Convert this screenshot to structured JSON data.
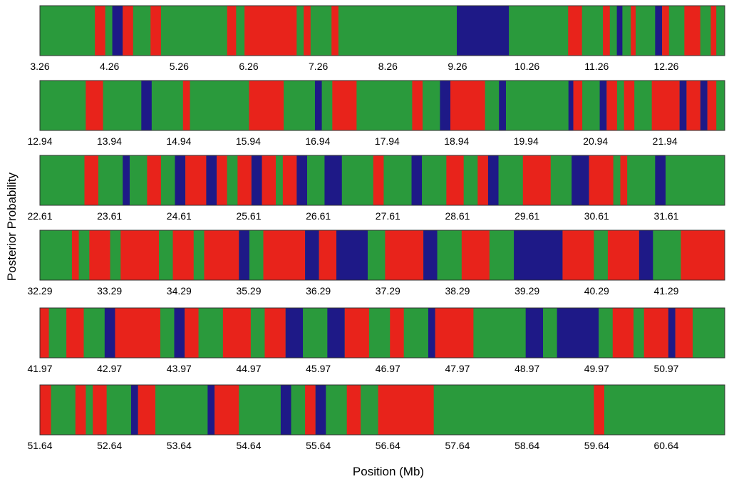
{
  "chart_data": {
    "type": "area",
    "ylabel": "Posterior Probability",
    "xlabel": "Position (Mb)",
    "colors": {
      "green": "#2a9a3c",
      "red": "#e8231b",
      "blue": "#1e1987"
    },
    "panels": [
      {
        "xlim": [
          3.26,
          13.1
        ],
        "ticks": [
          "3.26",
          "4.26",
          "5.26",
          "6.26",
          "7.26",
          "8.26",
          "9.26",
          "10.26",
          "11.26",
          "12.26"
        ],
        "blocks": [
          [
            3.26,
            "green"
          ],
          [
            4.05,
            "red"
          ],
          [
            4.2,
            "green"
          ],
          [
            4.3,
            "blue"
          ],
          [
            4.45,
            "red"
          ],
          [
            4.6,
            "green"
          ],
          [
            4.85,
            "red"
          ],
          [
            5.0,
            "green"
          ],
          [
            5.95,
            "red"
          ],
          [
            6.08,
            "green"
          ],
          [
            6.2,
            "red"
          ],
          [
            6.95,
            "green"
          ],
          [
            7.05,
            "red"
          ],
          [
            7.15,
            "green"
          ],
          [
            7.45,
            "red"
          ],
          [
            7.55,
            "green"
          ],
          [
            9.25,
            "blue"
          ],
          [
            10.0,
            "green"
          ],
          [
            10.85,
            "red"
          ],
          [
            11.05,
            "green"
          ],
          [
            11.35,
            "red"
          ],
          [
            11.45,
            "green"
          ],
          [
            11.55,
            "blue"
          ],
          [
            11.63,
            "green"
          ],
          [
            11.75,
            "red"
          ],
          [
            11.82,
            "green"
          ],
          [
            12.1,
            "blue"
          ],
          [
            12.2,
            "red"
          ],
          [
            12.3,
            "green"
          ],
          [
            12.52,
            "red"
          ],
          [
            12.75,
            "green"
          ],
          [
            12.9,
            "red"
          ],
          [
            12.98,
            "green"
          ]
        ]
      },
      {
        "xlim": [
          12.94,
          22.8
        ],
        "ticks": [
          "12.94",
          "13.94",
          "14.94",
          "15.94",
          "16.94",
          "17.94",
          "18.94",
          "19.94",
          "20.94",
          "21.94"
        ],
        "blocks": [
          [
            12.94,
            "green"
          ],
          [
            13.6,
            "red"
          ],
          [
            13.85,
            "green"
          ],
          [
            14.4,
            "blue"
          ],
          [
            14.55,
            "green"
          ],
          [
            15.0,
            "red"
          ],
          [
            15.1,
            "green"
          ],
          [
            15.95,
            "red"
          ],
          [
            16.45,
            "green"
          ],
          [
            16.9,
            "blue"
          ],
          [
            17.0,
            "green"
          ],
          [
            17.15,
            "red"
          ],
          [
            17.5,
            "green"
          ],
          [
            18.3,
            "red"
          ],
          [
            18.45,
            "green"
          ],
          [
            18.7,
            "blue"
          ],
          [
            18.85,
            "red"
          ],
          [
            19.35,
            "green"
          ],
          [
            19.55,
            "blue"
          ],
          [
            19.65,
            "green"
          ],
          [
            20.55,
            "blue"
          ],
          [
            20.62,
            "red"
          ],
          [
            20.75,
            "green"
          ],
          [
            21.0,
            "blue"
          ],
          [
            21.1,
            "red"
          ],
          [
            21.25,
            "green"
          ],
          [
            21.35,
            "red"
          ],
          [
            21.5,
            "green"
          ],
          [
            21.75,
            "red"
          ],
          [
            22.15,
            "blue"
          ],
          [
            22.25,
            "red"
          ],
          [
            22.45,
            "blue"
          ],
          [
            22.55,
            "red"
          ],
          [
            22.68,
            "green"
          ]
        ]
      },
      {
        "xlim": [
          22.61,
          32.45
        ],
        "ticks": [
          "22.61",
          "23.61",
          "24.61",
          "25.61",
          "26.61",
          "27.61",
          "28.61",
          "29.61",
          "30.61",
          "31.61"
        ],
        "blocks": [
          [
            22.61,
            "green"
          ],
          [
            23.25,
            "red"
          ],
          [
            23.45,
            "green"
          ],
          [
            23.8,
            "blue"
          ],
          [
            23.9,
            "green"
          ],
          [
            24.15,
            "red"
          ],
          [
            24.35,
            "green"
          ],
          [
            24.55,
            "blue"
          ],
          [
            24.7,
            "red"
          ],
          [
            25.0,
            "blue"
          ],
          [
            25.15,
            "red"
          ],
          [
            25.3,
            "green"
          ],
          [
            25.45,
            "red"
          ],
          [
            25.65,
            "blue"
          ],
          [
            25.8,
            "red"
          ],
          [
            26.0,
            "green"
          ],
          [
            26.1,
            "red"
          ],
          [
            26.3,
            "blue"
          ],
          [
            26.45,
            "green"
          ],
          [
            26.7,
            "blue"
          ],
          [
            26.95,
            "green"
          ],
          [
            27.4,
            "red"
          ],
          [
            27.55,
            "green"
          ],
          [
            27.95,
            "blue"
          ],
          [
            28.1,
            "green"
          ],
          [
            28.45,
            "red"
          ],
          [
            28.7,
            "green"
          ],
          [
            28.9,
            "red"
          ],
          [
            29.05,
            "blue"
          ],
          [
            29.2,
            "green"
          ],
          [
            29.55,
            "red"
          ],
          [
            29.95,
            "green"
          ],
          [
            30.25,
            "blue"
          ],
          [
            30.5,
            "red"
          ],
          [
            30.85,
            "green"
          ],
          [
            30.95,
            "red"
          ],
          [
            31.05,
            "green"
          ],
          [
            31.45,
            "blue"
          ],
          [
            31.6,
            "green"
          ]
        ]
      },
      {
        "xlim": [
          32.29,
          42.13
        ],
        "ticks": [
          "32.29",
          "33.29",
          "34.29",
          "35.29",
          "36.29",
          "37.29",
          "38.29",
          "39.29",
          "40.29",
          "41.29"
        ],
        "blocks": [
          [
            32.29,
            "green"
          ],
          [
            32.75,
            "red"
          ],
          [
            32.85,
            "green"
          ],
          [
            33.0,
            "red"
          ],
          [
            33.3,
            "green"
          ],
          [
            33.45,
            "red"
          ],
          [
            34.0,
            "green"
          ],
          [
            34.2,
            "red"
          ],
          [
            34.5,
            "green"
          ],
          [
            34.65,
            "red"
          ],
          [
            35.15,
            "blue"
          ],
          [
            35.3,
            "green"
          ],
          [
            35.5,
            "red"
          ],
          [
            36.1,
            "blue"
          ],
          [
            36.3,
            "red"
          ],
          [
            36.55,
            "blue"
          ],
          [
            37.0,
            "green"
          ],
          [
            37.25,
            "red"
          ],
          [
            37.8,
            "blue"
          ],
          [
            38.0,
            "green"
          ],
          [
            38.35,
            "red"
          ],
          [
            38.75,
            "green"
          ],
          [
            39.1,
            "blue"
          ],
          [
            39.8,
            "red"
          ],
          [
            40.25,
            "green"
          ],
          [
            40.45,
            "red"
          ],
          [
            40.9,
            "blue"
          ],
          [
            41.1,
            "green"
          ],
          [
            41.5,
            "red"
          ]
        ]
      },
      {
        "xlim": [
          41.97,
          51.81
        ],
        "ticks": [
          "41.97",
          "42.97",
          "43.97",
          "44.97",
          "45.97",
          "46.97",
          "47.97",
          "48.97",
          "49.97",
          "50.97"
        ],
        "blocks": [
          [
            41.97,
            "red"
          ],
          [
            42.1,
            "green"
          ],
          [
            42.35,
            "red"
          ],
          [
            42.6,
            "green"
          ],
          [
            42.9,
            "blue"
          ],
          [
            43.05,
            "red"
          ],
          [
            43.7,
            "green"
          ],
          [
            43.9,
            "blue"
          ],
          [
            44.05,
            "red"
          ],
          [
            44.25,
            "green"
          ],
          [
            44.6,
            "red"
          ],
          [
            45.0,
            "green"
          ],
          [
            45.2,
            "red"
          ],
          [
            45.5,
            "blue"
          ],
          [
            45.75,
            "green"
          ],
          [
            46.1,
            "blue"
          ],
          [
            46.35,
            "red"
          ],
          [
            46.7,
            "green"
          ],
          [
            47.0,
            "red"
          ],
          [
            47.2,
            "green"
          ],
          [
            47.55,
            "blue"
          ],
          [
            47.65,
            "red"
          ],
          [
            48.2,
            "green"
          ],
          [
            48.95,
            "blue"
          ],
          [
            49.2,
            "green"
          ],
          [
            49.4,
            "blue"
          ],
          [
            50.0,
            "green"
          ],
          [
            50.2,
            "red"
          ],
          [
            50.5,
            "green"
          ],
          [
            50.65,
            "red"
          ],
          [
            51.0,
            "blue"
          ],
          [
            51.1,
            "red"
          ],
          [
            51.35,
            "green"
          ]
        ]
      },
      {
        "xlim": [
          51.64,
          61.48
        ],
        "ticks": [
          "51.64",
          "52.64",
          "53.64",
          "54.64",
          "55.64",
          "56.64",
          "57.64",
          "58.64",
          "59.64",
          "60.64"
        ],
        "blocks": [
          [
            51.64,
            "red"
          ],
          [
            51.8,
            "green"
          ],
          [
            52.15,
            "red"
          ],
          [
            52.3,
            "green"
          ],
          [
            52.4,
            "red"
          ],
          [
            52.6,
            "green"
          ],
          [
            52.95,
            "blue"
          ],
          [
            53.05,
            "red"
          ],
          [
            53.3,
            "green"
          ],
          [
            54.05,
            "blue"
          ],
          [
            54.15,
            "red"
          ],
          [
            54.5,
            "green"
          ],
          [
            55.1,
            "blue"
          ],
          [
            55.25,
            "green"
          ],
          [
            55.45,
            "red"
          ],
          [
            55.6,
            "blue"
          ],
          [
            55.75,
            "green"
          ],
          [
            56.05,
            "red"
          ],
          [
            56.25,
            "green"
          ],
          [
            56.5,
            "red"
          ],
          [
            57.3,
            "green"
          ],
          [
            59.6,
            "red"
          ],
          [
            59.75,
            "green"
          ]
        ]
      }
    ]
  }
}
